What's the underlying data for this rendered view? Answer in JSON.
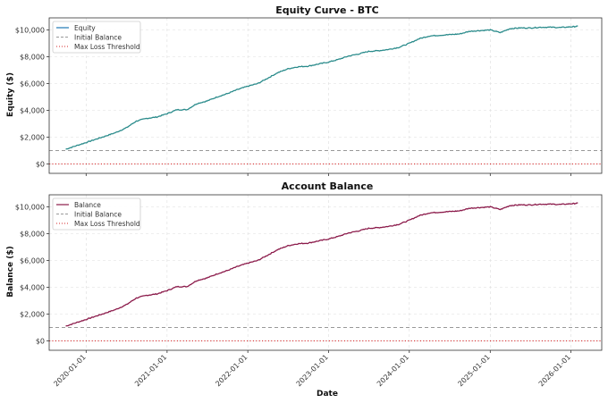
{
  "chart_data": [
    {
      "type": "line",
      "title": "Equity Curve - BTC",
      "xlabel": "",
      "ylabel": "Equity ($)",
      "ylim": [
        -700,
        10900
      ],
      "yticks": [
        0,
        2000,
        4000,
        6000,
        8000,
        10000
      ],
      "ytick_labels": [
        "$0",
        "$2,000",
        "$4,000",
        "$6,000",
        "$8,000",
        "$10,000"
      ],
      "grid": true,
      "legend_placement": "top-left",
      "series": [
        {
          "name": "Equity",
          "color": "#1f77b4",
          "overlay_color": "#2a8b8b",
          "x": [
            "2019-10-01",
            "2019-11-15",
            "2020-01-01",
            "2020-02-15",
            "2020-04-01",
            "2020-05-15",
            "2020-07-01",
            "2020-08-15",
            "2020-10-01",
            "2020-11-15",
            "2021-01-01",
            "2021-02-15",
            "2021-04-01",
            "2021-05-15",
            "2021-07-01",
            "2021-08-15",
            "2021-10-01",
            "2021-11-15",
            "2022-01-01",
            "2022-02-15",
            "2022-04-01",
            "2022-05-15",
            "2022-07-01",
            "2022-08-15",
            "2022-10-01",
            "2022-11-15",
            "2023-01-01",
            "2023-02-15",
            "2023-04-01",
            "2023-05-15",
            "2023-07-01",
            "2023-08-15",
            "2023-10-01",
            "2023-11-15",
            "2024-01-01",
            "2024-02-15",
            "2024-04-01",
            "2024-05-15",
            "2024-07-01",
            "2024-08-15",
            "2024-10-01",
            "2024-11-15",
            "2025-01-01",
            "2025-02-15",
            "2025-04-01",
            "2025-05-15",
            "2025-07-01",
            "2025-08-15",
            "2025-10-01",
            "2025-11-15",
            "2026-01-01",
            "2026-02-01"
          ],
          "values": [
            1100,
            1350,
            1600,
            1850,
            2100,
            2350,
            2700,
            3200,
            3400,
            3500,
            3750,
            4050,
            4050,
            4500,
            4700,
            5000,
            5250,
            5550,
            5800,
            6000,
            6400,
            6800,
            7100,
            7250,
            7300,
            7450,
            7600,
            7800,
            8050,
            8200,
            8400,
            8450,
            8550,
            8700,
            9000,
            9350,
            9550,
            9600,
            9650,
            9700,
            9900,
            9950,
            10000,
            9800,
            10100,
            10150,
            10150,
            10200,
            10200,
            10180,
            10230,
            10270
          ]
        },
        {
          "name": "Initial Balance",
          "color": "#999999",
          "style": "dashed",
          "value": 1000
        },
        {
          "name": "Max Loss Threshold",
          "color": "#d62728",
          "style": "dotted",
          "value": 0
        }
      ]
    },
    {
      "type": "line",
      "title": "Account Balance",
      "xlabel": "Date",
      "ylabel": "Balance ($)",
      "ylim": [
        -700,
        10900
      ],
      "yticks": [
        0,
        2000,
        4000,
        6000,
        8000,
        10000
      ],
      "ytick_labels": [
        "$0",
        "$2,000",
        "$4,000",
        "$6,000",
        "$8,000",
        "$10,000"
      ],
      "xticks": [
        "2020-01-01",
        "2021-01-01",
        "2022-01-01",
        "2023-01-01",
        "2024-01-01",
        "2025-01-01",
        "2026-01-01"
      ],
      "xtick_labels": [
        "2020-01-01",
        "2021-01-01",
        "2022-01-01",
        "2023-01-01",
        "2024-01-01",
        "2025-01-01",
        "2026-01-01"
      ],
      "grid": true,
      "legend_placement": "top-left",
      "series": [
        {
          "name": "Balance",
          "color": "#8b1a4a",
          "x": [
            "2019-10-01",
            "2019-11-15",
            "2020-01-01",
            "2020-02-15",
            "2020-04-01",
            "2020-05-15",
            "2020-07-01",
            "2020-08-15",
            "2020-10-01",
            "2020-11-15",
            "2021-01-01",
            "2021-02-15",
            "2021-04-01",
            "2021-05-15",
            "2021-07-01",
            "2021-08-15",
            "2021-10-01",
            "2021-11-15",
            "2022-01-01",
            "2022-02-15",
            "2022-04-01",
            "2022-05-15",
            "2022-07-01",
            "2022-08-15",
            "2022-10-01",
            "2022-11-15",
            "2023-01-01",
            "2023-02-15",
            "2023-04-01",
            "2023-05-15",
            "2023-07-01",
            "2023-08-15",
            "2023-10-01",
            "2023-11-15",
            "2024-01-01",
            "2024-02-15",
            "2024-04-01",
            "2024-05-15",
            "2024-07-01",
            "2024-08-15",
            "2024-10-01",
            "2024-11-15",
            "2025-01-01",
            "2025-02-15",
            "2025-04-01",
            "2025-05-15",
            "2025-07-01",
            "2025-08-15",
            "2025-10-01",
            "2025-11-15",
            "2026-01-01",
            "2026-02-01"
          ],
          "values": [
            1100,
            1350,
            1600,
            1850,
            2100,
            2350,
            2700,
            3200,
            3400,
            3500,
            3750,
            4050,
            4050,
            4500,
            4700,
            5000,
            5250,
            5550,
            5800,
            6000,
            6400,
            6800,
            7100,
            7250,
            7300,
            7450,
            7600,
            7800,
            8050,
            8200,
            8400,
            8450,
            8550,
            8700,
            9000,
            9350,
            9550,
            9600,
            9650,
            9700,
            9900,
            9950,
            10000,
            9800,
            10100,
            10150,
            10150,
            10200,
            10200,
            10180,
            10230,
            10270
          ]
        },
        {
          "name": "Initial Balance",
          "color": "#999999",
          "style": "dashed",
          "value": 1000
        },
        {
          "name": "Max Loss Threshold",
          "color": "#d62728",
          "style": "dotted",
          "value": 0
        }
      ]
    }
  ]
}
